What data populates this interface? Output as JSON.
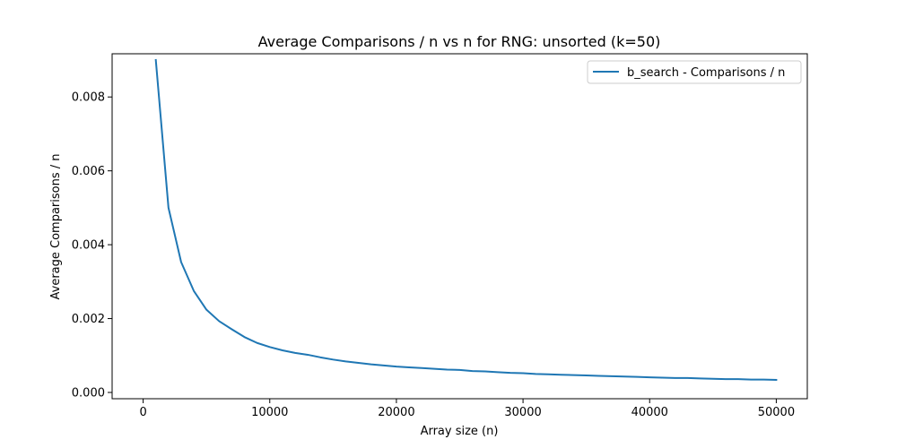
{
  "chart_data": {
    "type": "line",
    "title": "Average Comparisons / n vs n for RNG: unsorted (k=50)",
    "xlabel": "Array size (n)",
    "ylabel": "Average Comparisons / n",
    "xlim": [
      -2450,
      52450
    ],
    "ylim": [
      -0.00017,
      0.00917
    ],
    "xticks": [
      0,
      10000,
      20000,
      30000,
      40000,
      50000
    ],
    "xtick_labels": [
      "0",
      "10000",
      "20000",
      "30000",
      "40000",
      "50000"
    ],
    "yticks": [
      0.0,
      0.002,
      0.004,
      0.006,
      0.008
    ],
    "ytick_labels": [
      "0.000",
      "0.002",
      "0.004",
      "0.006",
      "0.008"
    ],
    "grid": false,
    "legend_position": "top-right",
    "series": [
      {
        "name": "b_search - Comparisons / n",
        "color": "#1f77b4",
        "x": [
          1000,
          2000,
          3000,
          4000,
          5000,
          6000,
          7000,
          8000,
          9000,
          10000,
          11000,
          12000,
          13000,
          14000,
          15000,
          16000,
          17000,
          18000,
          19000,
          20000,
          21000,
          22000,
          23000,
          24000,
          25000,
          26000,
          27000,
          28000,
          29000,
          30000,
          31000,
          32000,
          33000,
          34000,
          35000,
          36000,
          37000,
          38000,
          39000,
          40000,
          41000,
          42000,
          43000,
          44000,
          45000,
          46000,
          47000,
          48000,
          49000,
          50000
        ],
        "y": [
          0.009,
          0.005,
          0.00353,
          0.00275,
          0.00224,
          0.00193,
          0.00171,
          0.0015,
          0.00134,
          0.00123,
          0.00114,
          0.00107,
          0.00102,
          0.00095,
          0.00089,
          0.00084,
          0.0008,
          0.00076,
          0.00073,
          0.0007,
          0.00068,
          0.00066,
          0.00064,
          0.00062,
          0.00061,
          0.00058,
          0.00057,
          0.00055,
          0.00053,
          0.00052,
          0.0005,
          0.00049,
          0.00048,
          0.00047,
          0.00046,
          0.00045,
          0.00044,
          0.00043,
          0.00042,
          0.00041,
          0.0004,
          0.00039,
          0.00039,
          0.00038,
          0.00037,
          0.00036,
          0.00036,
          0.00035,
          0.00035,
          0.00034
        ]
      }
    ]
  }
}
